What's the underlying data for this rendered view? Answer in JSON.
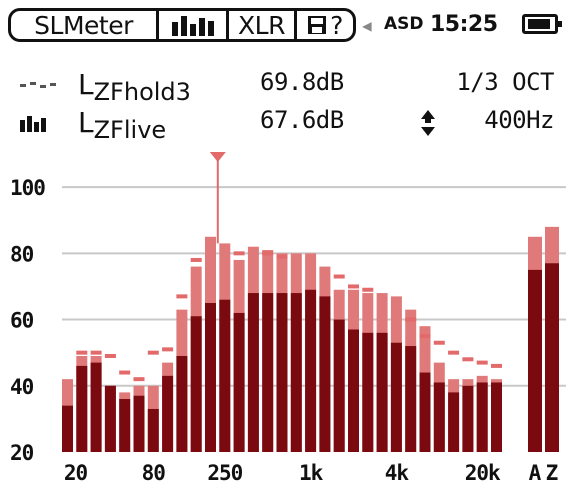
{
  "status_bar": {
    "app_name": "SLMeter",
    "input_label": "XLR",
    "help_label": "?",
    "device": "ASD",
    "time": "15:25"
  },
  "readouts": [
    {
      "label": "LZFhold3",
      "label_main": "L",
      "label_sub": "ZFhold3",
      "value": "69.8dB",
      "right": "1/3 OCT"
    },
    {
      "label": "LZFlive",
      "label_main": "L",
      "label_sub": "ZFlive",
      "value": "67.6dB",
      "right": "400Hz"
    }
  ],
  "chart_data": {
    "type": "bar",
    "title": "",
    "xlabel": "",
    "ylabel": "",
    "ylim": [
      20,
      110
    ],
    "y_ticks": [
      20,
      40,
      60,
      80,
      100
    ],
    "x_tick_labels": [
      "20",
      "80",
      "250",
      "1k",
      "4k",
      "20k"
    ],
    "x_tick_bands": [
      0,
      6,
      11,
      17,
      23,
      29
    ],
    "cursor_band": 11,
    "series": [
      {
        "name": "LZFhold3",
        "kind": "hold",
        "values": [
          42,
          49,
          49,
          40,
          38,
          40,
          40,
          47,
          63,
          76,
          85,
          83,
          78,
          82,
          81,
          80,
          80,
          80,
          76,
          69,
          69,
          68,
          68,
          67,
          63,
          58,
          47,
          42,
          42,
          43,
          42
        ]
      },
      {
        "name": "LZFlive",
        "kind": "live",
        "values": [
          34,
          46,
          47,
          40,
          36,
          37,
          33,
          43,
          49,
          61,
          65,
          66,
          62,
          68,
          68,
          68,
          68,
          69,
          67,
          60,
          57,
          56,
          56,
          53,
          52,
          44,
          41,
          38,
          40,
          41,
          41
        ]
      }
    ],
    "max_markers": [
      null,
      50,
      50,
      49,
      44,
      42,
      50,
      51,
      67,
      78,
      null,
      null,
      80,
      null,
      80,
      79,
      null,
      null,
      null,
      73,
      70,
      69,
      null,
      null,
      60,
      55,
      53,
      50,
      48,
      47,
      46
    ],
    "overall": {
      "labels": [
        "A",
        "Z"
      ],
      "hold": [
        85,
        88
      ],
      "live": [
        75,
        77
      ]
    }
  },
  "colors": {
    "hold": "#e07a7a",
    "live": "#7a0a0f",
    "marker": "#e26a6a",
    "grid": "#c8c8c8",
    "text": "#111111"
  }
}
